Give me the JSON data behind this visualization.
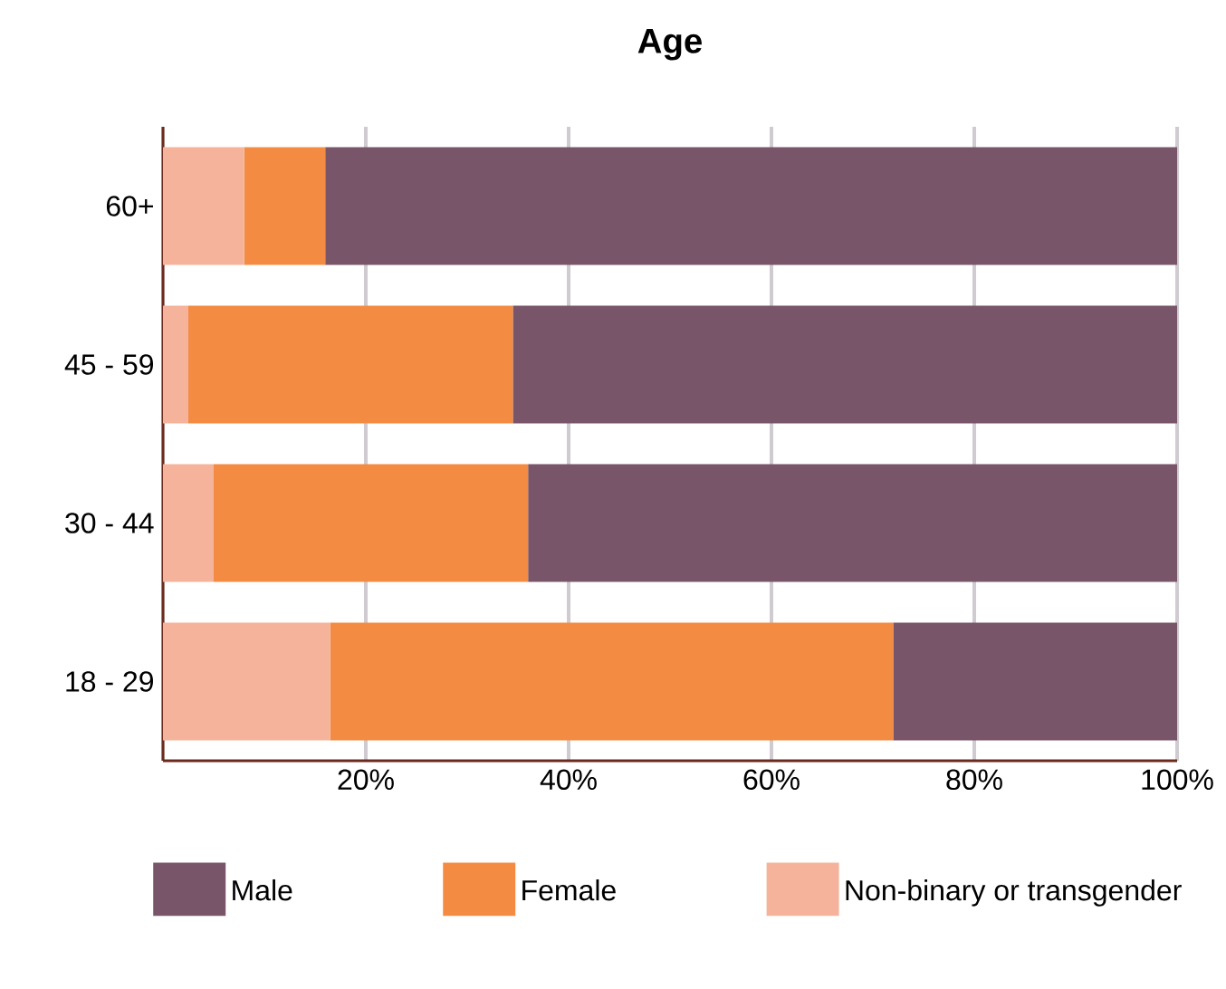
{
  "chart_data": {
    "type": "bar",
    "orientation": "horizontal",
    "stacked": true,
    "title": "Age",
    "categories": [
      "60+",
      "45 - 59",
      "30 - 44",
      "18 - 29"
    ],
    "series": [
      {
        "name": "Non-binary or transgender",
        "color": "#f5b39c",
        "values": [
          8,
          2.5,
          5,
          16.5
        ]
      },
      {
        "name": "Female",
        "color": "#f48b42",
        "values": [
          8,
          32,
          31,
          55.5
        ]
      },
      {
        "name": "Male",
        "color": "#785569",
        "values": [
          84,
          65.5,
          64,
          28
        ]
      }
    ],
    "xlim": [
      0,
      100
    ],
    "xticks": [
      {
        "value": 20,
        "label": "20%"
      },
      {
        "value": 40,
        "label": "40%"
      },
      {
        "value": 60,
        "label": "60%"
      },
      {
        "value": 80,
        "label": "80%"
      },
      {
        "value": 100,
        "label": "100%"
      }
    ],
    "grid": "x",
    "legend": "bottom"
  }
}
